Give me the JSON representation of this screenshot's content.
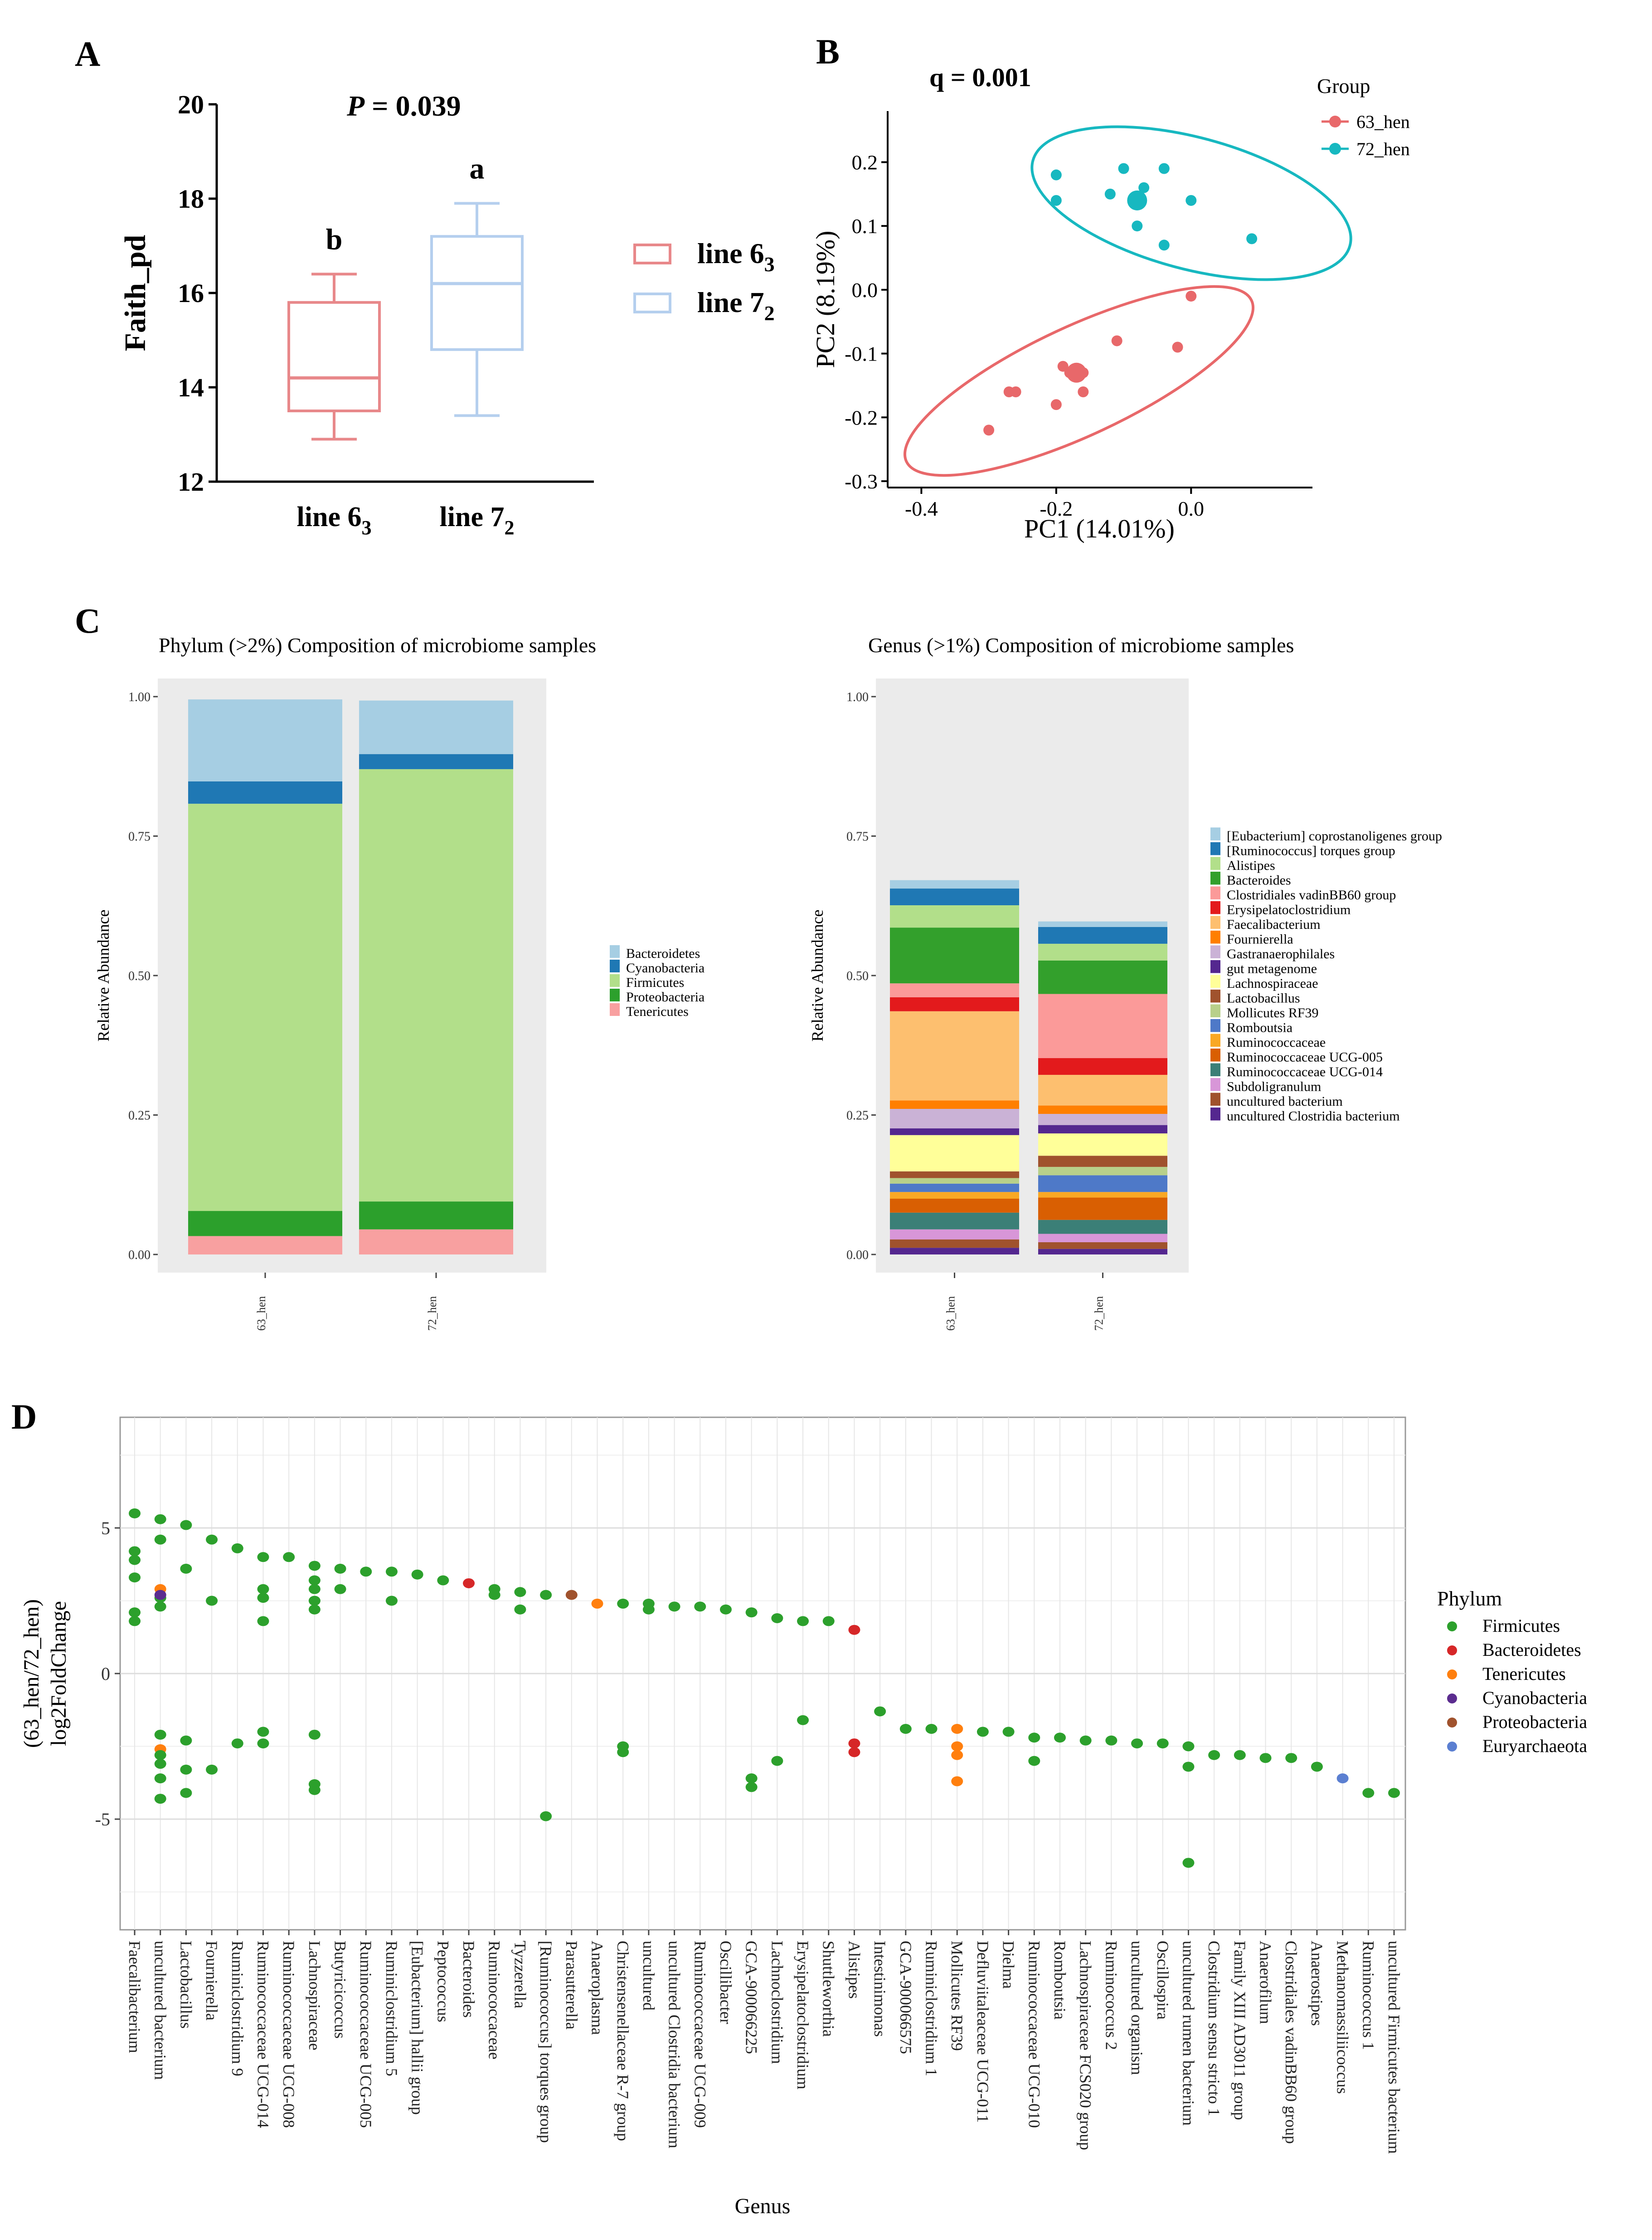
{
  "panels": {
    "A": {
      "label": "A"
    },
    "B": {
      "label": "B"
    },
    "C": {
      "label": "C"
    },
    "D": {
      "label": "D"
    }
  },
  "colors": {
    "firmicutes": "#2ca02c",
    "bacteroidetes": "#d62728",
    "tenericutes": "#ff7f0e",
    "cyanobacteria": "#5b2c8f",
    "proteobacteria": "#a0522d",
    "euryarchaeota": "#5b7fd1",
    "line63": "#e8888a",
    "line72": "#b5cfee",
    "group63": "#e8686a",
    "group72": "#17b8c0",
    "panelbg": "#ebebeb"
  },
  "chart_data": [
    {
      "id": "A",
      "type": "box",
      "title_prefix": "P",
      "title_value": " = 0.039",
      "ylabel": "Faith_pd",
      "ylim": [
        12,
        20
      ],
      "yticks": [
        "12",
        "14",
        "16",
        "18",
        "20"
      ],
      "categories": [
        {
          "base": "line 6",
          "sub": "3"
        },
        {
          "base": "line 7",
          "sub": "2"
        }
      ],
      "boxes": [
        {
          "name": "line 6",
          "sub": "3",
          "min": 12.9,
          "q1": 13.5,
          "median": 14.2,
          "q3": 15.8,
          "max": 16.4,
          "letter": "b"
        },
        {
          "name": "line 7",
          "sub": "2",
          "min": 13.4,
          "q1": 14.8,
          "median": 16.2,
          "q3": 17.2,
          "max": 17.9,
          "letter": "a"
        }
      ]
    },
    {
      "id": "B",
      "type": "scatter",
      "title": "q = 0.001",
      "xlabel": "PC1 (14.01%)",
      "ylabel": "PC2 (8.19%)",
      "xlim": [
        -0.45,
        0.18
      ],
      "ylim": [
        -0.31,
        0.28
      ],
      "xticks": [
        "-0.4",
        "-0.2",
        "0.0"
      ],
      "yticks": [
        "-0.3",
        "-0.2",
        "-0.1",
        "0.0",
        "0.1",
        "0.2"
      ],
      "legend_title": "Group",
      "series": [
        {
          "name": "63_hen",
          "points": [
            [
              -0.3,
              -0.22
            ],
            [
              -0.27,
              -0.16
            ],
            [
              -0.26,
              -0.16
            ],
            [
              -0.2,
              -0.18
            ],
            [
              -0.19,
              -0.12
            ],
            [
              -0.18,
              -0.13
            ],
            [
              -0.17,
              -0.13
            ],
            [
              -0.16,
              -0.16
            ],
            [
              -0.16,
              -0.13
            ],
            [
              -0.11,
              -0.08
            ],
            [
              -0.02,
              -0.09
            ],
            [
              0.0,
              -0.01
            ]
          ],
          "centroid": [
            -0.17,
            -0.13
          ]
        },
        {
          "name": "72_hen",
          "points": [
            [
              -0.2,
              0.18
            ],
            [
              -0.2,
              0.14
            ],
            [
              -0.12,
              0.15
            ],
            [
              -0.1,
              0.19
            ],
            [
              -0.08,
              0.1
            ],
            [
              -0.04,
              0.19
            ],
            [
              -0.04,
              0.07
            ],
            [
              0.0,
              0.14
            ],
            [
              0.09,
              0.08
            ],
            [
              -0.07,
              0.16
            ]
          ],
          "centroid": [
            -0.08,
            0.14
          ]
        }
      ]
    },
    {
      "id": "C1",
      "type": "stacked-bar",
      "title": "Phylum (>2%) Composition of microbiome samples",
      "ylabel": "Relative Abundance",
      "ylim": [
        0,
        1
      ],
      "yticks": [
        "0.00",
        "0.25",
        "0.50",
        "0.75",
        "1.00"
      ],
      "categories": [
        "63_hen",
        "72_hen"
      ],
      "series": [
        {
          "name": "Tenericutes",
          "color": "#f8a0a0",
          "values": [
            0.033,
            0.045
          ]
        },
        {
          "name": "Proteobacteria",
          "color": "#2ca02c",
          "values": [
            0.045,
            0.05
          ]
        },
        {
          "name": "Firmicutes",
          "color": "#b2df8a",
          "values": [
            0.73,
            0.775
          ]
        },
        {
          "name": "Cyanobacteria",
          "color": "#1f78b4",
          "values": [
            0.04,
            0.027
          ]
        },
        {
          "name": "Bacteroidetes",
          "color": "#a6cee3",
          "values": [
            0.147,
            0.096
          ]
        }
      ],
      "legend": [
        "Bacteroidetes",
        "Cyanobacteria",
        "Firmicutes",
        "Proteobacteria",
        "Tenericutes"
      ]
    },
    {
      "id": "C2",
      "type": "stacked-bar",
      "title": "Genus (>1%) Composition of microbiome samples",
      "ylabel": "Relative Abundance",
      "ylim": [
        0,
        1
      ],
      "yticks": [
        "0.00",
        "0.25",
        "0.50",
        "0.75",
        "1.00"
      ],
      "categories": [
        "63_hen",
        "72_hen"
      ],
      "series": [
        {
          "name": "uncultured Clostridia bacterium",
          "color": "#54278f",
          "values": [
            0.012,
            0.01
          ]
        },
        {
          "name": "uncultured bacterium",
          "color": "#a0522d",
          "values": [
            0.015,
            0.012
          ]
        },
        {
          "name": "Subdoligranulum",
          "color": "#d896d8",
          "values": [
            0.018,
            0.015
          ]
        },
        {
          "name": "Ruminococcaceae UCG-014",
          "color": "#3b7f77",
          "values": [
            0.03,
            0.025
          ]
        },
        {
          "name": "Ruminococcaceae UCG-005",
          "color": "#d95f02",
          "values": [
            0.025,
            0.04
          ]
        },
        {
          "name": "Ruminococcaceae",
          "color": "#f9a825",
          "values": [
            0.012,
            0.01
          ]
        },
        {
          "name": "Romboutsia",
          "color": "#4e79c8",
          "values": [
            0.015,
            0.03
          ]
        },
        {
          "name": "Mollicutes RF39",
          "color": "#b8d08a",
          "values": [
            0.01,
            0.015
          ]
        },
        {
          "name": "Lactobacillus",
          "color": "#a0522d",
          "values": [
            0.012,
            0.02
          ]
        },
        {
          "name": "Lachnospiraceae",
          "color": "#ffff99",
          "values": [
            0.065,
            0.04
          ]
        },
        {
          "name": "gut metagenome",
          "color": "#54278f",
          "values": [
            0.012,
            0.015
          ]
        },
        {
          "name": "Gastranaerophilales",
          "color": "#cab2d6",
          "values": [
            0.035,
            0.02
          ]
        },
        {
          "name": "Fournierella",
          "color": "#ff7f00",
          "values": [
            0.015,
            0.015
          ]
        },
        {
          "name": "Faecalibacterium",
          "color": "#fdbf6f",
          "values": [
            0.16,
            0.055
          ]
        },
        {
          "name": "Erysipelatoclostridium",
          "color": "#e31a1c",
          "values": [
            0.025,
            0.03
          ]
        },
        {
          "name": "Clostridiales vadinBB60 group",
          "color": "#fb9a99",
          "values": [
            0.025,
            0.115
          ]
        },
        {
          "name": "Bacteroides",
          "color": "#33a02c",
          "values": [
            0.1,
            0.06
          ]
        },
        {
          "name": "Alistipes",
          "color": "#b2df8a",
          "values": [
            0.04,
            0.03
          ]
        },
        {
          "name": "[Ruminococcus] torques group",
          "color": "#1f78b4",
          "values": [
            0.03,
            0.03
          ]
        },
        {
          "name": "[Eubacterium] coprostanoligenes group",
          "color": "#a6cee3",
          "values": [
            0.015,
            0.01
          ]
        }
      ],
      "legend": [
        "[Eubacterium] coprostanoligenes group",
        "[Ruminococcus] torques group",
        "Alistipes",
        "Bacteroides",
        "Clostridiales vadinBB60 group",
        "Erysipelatoclostridium",
        "Faecalibacterium",
        "Fournierella",
        "Gastranaerophilales",
        "gut metagenome",
        "Lachnospiraceae",
        "Lactobacillus",
        "Mollicutes RF39",
        "Romboutsia",
        "Ruminococcaceae",
        "Ruminococcaceae UCG-005",
        "Ruminococcaceae UCG-014",
        "Subdoligranulum",
        "uncultured bacterium",
        "uncultured Clostridia bacterium"
      ]
    },
    {
      "id": "D",
      "type": "scatter",
      "xlabel": "Genus",
      "ylabel_line1": "(63_hen/72_hen)",
      "ylabel_line2": "log2FoldChange",
      "ylim": [
        -8.8,
        8.8
      ],
      "yticks": [
        "-5",
        "0",
        "5"
      ],
      "legend_title": "Phylum",
      "legend": [
        "Firmicutes",
        "Bacteroidetes",
        "Tenericutes",
        "Cyanobacteria",
        "Proteobacteria",
        "Euryarchaeota"
      ],
      "categories": [
        "Faecalibacterium",
        "uncultured bacterium",
        "Lactobacillus",
        "Fournierella",
        "Ruminiclostridium 9",
        "Ruminococcaceae UCG-014",
        "Ruminococcaceae UCG-008",
        "Lachnospiraceae",
        "Butyricicoccus",
        "Ruminococcaceae UCG-005",
        "Ruminiclostridium 5",
        "[Eubacterium] hallii group",
        "Peptococcus",
        "Bacteroides",
        "Ruminococcaceae",
        "Tyzzerella",
        "[Ruminococcus] torques group",
        "Parasutterella",
        "Anaeroplasma",
        "Christensenellaceae R-7 group",
        "uncultured",
        "uncultured Clostridia bacterium",
        "Ruminococcaceae UCG-009",
        "Oscillibacter",
        "GCA-900066225",
        "Lachnoclostridium",
        "Erysipelatoclostridium",
        "Shuttleworthia",
        "Alistipes",
        "Intestinimonas",
        "GCA-900066575",
        "Ruminiclostridium 1",
        "Mollicutes RF39",
        "Defluviitaleaceae UCG-011",
        "Dielma",
        "Ruminococcaceae UCG-010",
        "Romboutsia",
        "Lachnospiraceae FCS020 group",
        "Ruminococcus 2",
        "uncultured organism",
        "Oscillospira",
        "uncultured rumen bacterium",
        "Clostridium sensu stricto 1",
        "Family XIII AD3011 group",
        "Anaerofilum",
        "Clostridiales vadinBB60 group",
        "Anaerostipes",
        "Methanomassiliicoccus",
        "Ruminococcus 1",
        "uncultured Firmicutes bacterium"
      ],
      "points": [
        [
          0,
          5.5,
          "F"
        ],
        [
          0,
          4.2,
          "F"
        ],
        [
          0,
          3.9,
          "F"
        ],
        [
          0,
          3.3,
          "F"
        ],
        [
          0,
          2.1,
          "F"
        ],
        [
          0,
          1.8,
          "F"
        ],
        [
          1,
          5.3,
          "F"
        ],
        [
          1,
          4.6,
          "F"
        ],
        [
          1,
          2.9,
          "T"
        ],
        [
          1,
          2.6,
          "F"
        ],
        [
          1,
          2.3,
          "F"
        ],
        [
          1,
          2.7,
          "C"
        ],
        [
          1,
          -2.1,
          "F"
        ],
        [
          1,
          -2.6,
          "T"
        ],
        [
          1,
          -2.8,
          "F"
        ],
        [
          1,
          -3.1,
          "F"
        ],
        [
          1,
          -3.6,
          "F"
        ],
        [
          1,
          -4.3,
          "F"
        ],
        [
          2,
          5.1,
          "F"
        ],
        [
          2,
          3.6,
          "F"
        ],
        [
          2,
          -2.3,
          "F"
        ],
        [
          2,
          -3.3,
          "F"
        ],
        [
          2,
          -4.1,
          "F"
        ],
        [
          3,
          4.6,
          "F"
        ],
        [
          3,
          2.5,
          "F"
        ],
        [
          3,
          -3.3,
          "F"
        ],
        [
          4,
          4.3,
          "F"
        ],
        [
          4,
          -2.4,
          "F"
        ],
        [
          5,
          4.0,
          "F"
        ],
        [
          5,
          2.9,
          "F"
        ],
        [
          5,
          2.6,
          "F"
        ],
        [
          5,
          1.8,
          "F"
        ],
        [
          5,
          -2.0,
          "F"
        ],
        [
          5,
          -2.4,
          "F"
        ],
        [
          6,
          4.0,
          "F"
        ],
        [
          7,
          3.7,
          "F"
        ],
        [
          7,
          3.2,
          "F"
        ],
        [
          7,
          2.9,
          "F"
        ],
        [
          7,
          2.5,
          "F"
        ],
        [
          7,
          2.2,
          "F"
        ],
        [
          7,
          -2.1,
          "F"
        ],
        [
          7,
          -3.8,
          "F"
        ],
        [
          7,
          -4.0,
          "F"
        ],
        [
          8,
          3.6,
          "F"
        ],
        [
          8,
          2.9,
          "F"
        ],
        [
          9,
          3.5,
          "F"
        ],
        [
          10,
          3.5,
          "F"
        ],
        [
          10,
          2.5,
          "F"
        ],
        [
          11,
          3.4,
          "F"
        ],
        [
          12,
          3.2,
          "F"
        ],
        [
          13,
          3.1,
          "B"
        ],
        [
          14,
          2.9,
          "F"
        ],
        [
          14,
          2.7,
          "F"
        ],
        [
          15,
          2.8,
          "F"
        ],
        [
          15,
          2.2,
          "F"
        ],
        [
          16,
          2.7,
          "F"
        ],
        [
          16,
          -4.9,
          "F"
        ],
        [
          17,
          2.7,
          "P"
        ],
        [
          18,
          2.4,
          "T"
        ],
        [
          19,
          2.4,
          "F"
        ],
        [
          19,
          -2.5,
          "F"
        ],
        [
          19,
          -2.7,
          "F"
        ],
        [
          20,
          2.4,
          "F"
        ],
        [
          20,
          2.2,
          "F"
        ],
        [
          21,
          2.3,
          "F"
        ],
        [
          22,
          2.3,
          "F"
        ],
        [
          23,
          2.2,
          "F"
        ],
        [
          24,
          2.1,
          "F"
        ],
        [
          24,
          -3.6,
          "F"
        ],
        [
          24,
          -3.9,
          "F"
        ],
        [
          25,
          1.9,
          "F"
        ],
        [
          25,
          -3.0,
          "F"
        ],
        [
          26,
          1.8,
          "F"
        ],
        [
          26,
          -1.6,
          "F"
        ],
        [
          27,
          1.8,
          "F"
        ],
        [
          28,
          1.5,
          "B"
        ],
        [
          28,
          -2.4,
          "B"
        ],
        [
          28,
          -2.7,
          "B"
        ],
        [
          29,
          -1.3,
          "F"
        ],
        [
          30,
          -1.9,
          "F"
        ],
        [
          31,
          -1.9,
          "F"
        ],
        [
          32,
          -1.9,
          "T"
        ],
        [
          32,
          -2.5,
          "T"
        ],
        [
          32,
          -2.8,
          "T"
        ],
        [
          32,
          -3.7,
          "T"
        ],
        [
          33,
          -2.0,
          "F"
        ],
        [
          34,
          -2.0,
          "F"
        ],
        [
          35,
          -2.2,
          "F"
        ],
        [
          35,
          -3.0,
          "F"
        ],
        [
          36,
          -2.2,
          "F"
        ],
        [
          37,
          -2.3,
          "F"
        ],
        [
          38,
          -2.3,
          "F"
        ],
        [
          39,
          -2.4,
          "F"
        ],
        [
          40,
          -2.4,
          "F"
        ],
        [
          41,
          -2.5,
          "F"
        ],
        [
          41,
          -3.2,
          "F"
        ],
        [
          41,
          -6.5,
          "F"
        ],
        [
          42,
          -2.8,
          "F"
        ],
        [
          43,
          -2.8,
          "F"
        ],
        [
          44,
          -2.9,
          "F"
        ],
        [
          45,
          -2.9,
          "F"
        ],
        [
          46,
          -3.2,
          "F"
        ],
        [
          47,
          -3.6,
          "E"
        ],
        [
          48,
          -4.1,
          "F"
        ],
        [
          49,
          -4.1,
          "F"
        ]
      ]
    }
  ]
}
